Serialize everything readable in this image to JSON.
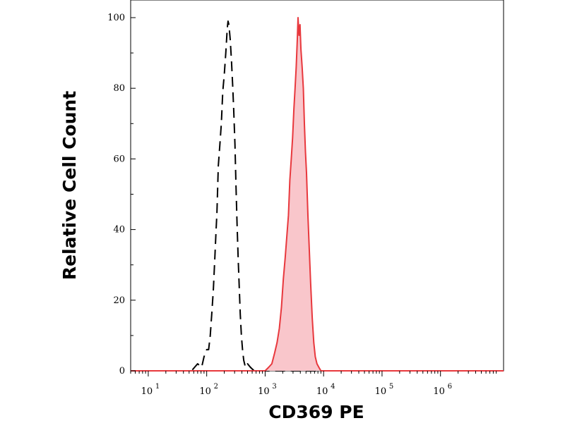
{
  "chart_data": {
    "type": "area",
    "title": "",
    "xlabel": "CD369 PE",
    "ylabel": "Relative Cell Count",
    "x_scale": "log",
    "xlim": [
      5,
      12000000
    ],
    "ylim": [
      0,
      105
    ],
    "x_ticks": [
      {
        "value": 10,
        "base": "10",
        "exp": "1"
      },
      {
        "value": 100,
        "base": "10",
        "exp": "2"
      },
      {
        "value": 1000,
        "base": "10",
        "exp": "3"
      },
      {
        "value": 10000,
        "base": "10",
        "exp": "4"
      },
      {
        "value": 100000,
        "base": "10",
        "exp": "5"
      },
      {
        "value": 1000000,
        "base": "10",
        "exp": "6"
      }
    ],
    "y_ticks": [
      {
        "value": 0,
        "label": "0"
      },
      {
        "value": 20,
        "label": "20"
      },
      {
        "value": 40,
        "label": "40"
      },
      {
        "value": 60,
        "label": "60"
      },
      {
        "value": 80,
        "label": "80"
      },
      {
        "value": 100,
        "label": "100"
      }
    ],
    "grid": false,
    "legend": "none",
    "series": [
      {
        "style": "dashed",
        "color": "#000000",
        "fill": "none",
        "points": [
          [
            5,
            0
          ],
          [
            55,
            0
          ],
          [
            62,
            1
          ],
          [
            70,
            2
          ],
          [
            82,
            1
          ],
          [
            90,
            4
          ],
          [
            100,
            6
          ],
          [
            108,
            6
          ],
          [
            115,
            10
          ],
          [
            122,
            16
          ],
          [
            130,
            23
          ],
          [
            138,
            32
          ],
          [
            145,
            40
          ],
          [
            150,
            45
          ],
          [
            158,
            58
          ],
          [
            168,
            64
          ],
          [
            178,
            70
          ],
          [
            188,
            79
          ],
          [
            200,
            84
          ],
          [
            212,
            90
          ],
          [
            225,
            97
          ],
          [
            232,
            99
          ],
          [
            240,
            98
          ],
          [
            252,
            94
          ],
          [
            265,
            88
          ],
          [
            278,
            81
          ],
          [
            290,
            74
          ],
          [
            305,
            64
          ],
          [
            318,
            52
          ],
          [
            330,
            42
          ],
          [
            345,
            32
          ],
          [
            360,
            24
          ],
          [
            375,
            16
          ],
          [
            392,
            10
          ],
          [
            410,
            6
          ],
          [
            430,
            3
          ],
          [
            460,
            1
          ],
          [
            500,
            2
          ],
          [
            560,
            1
          ],
          [
            650,
            0
          ],
          [
            12000000,
            0
          ]
        ]
      },
      {
        "style": "solid",
        "color": "#e8383d",
        "fill": "#f9c6cb",
        "points": [
          [
            5,
            0
          ],
          [
            1000,
            0
          ],
          [
            1150,
            1
          ],
          [
            1300,
            2
          ],
          [
            1450,
            5
          ],
          [
            1600,
            8
          ],
          [
            1750,
            12
          ],
          [
            1900,
            18
          ],
          [
            2050,
            26
          ],
          [
            2200,
            32
          ],
          [
            2350,
            38
          ],
          [
            2500,
            44
          ],
          [
            2650,
            54
          ],
          [
            2800,
            60
          ],
          [
            2950,
            66
          ],
          [
            3100,
            74
          ],
          [
            3250,
            80
          ],
          [
            3400,
            86
          ],
          [
            3550,
            94
          ],
          [
            3650,
            100
          ],
          [
            3800,
            95
          ],
          [
            3950,
            98
          ],
          [
            4100,
            91
          ],
          [
            4300,
            86
          ],
          [
            4500,
            80
          ],
          [
            4700,
            70
          ],
          [
            4900,
            62
          ],
          [
            5100,
            56
          ],
          [
            5400,
            44
          ],
          [
            5700,
            34
          ],
          [
            6000,
            25
          ],
          [
            6400,
            15
          ],
          [
            6800,
            8
          ],
          [
            7200,
            4
          ],
          [
            7700,
            2
          ],
          [
            8300,
            1
          ],
          [
            9000,
            0
          ],
          [
            12000000,
            0
          ]
        ]
      }
    ]
  }
}
